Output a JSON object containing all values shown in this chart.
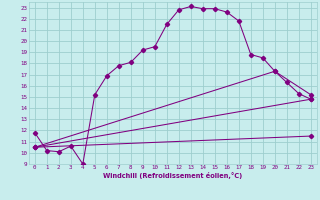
{
  "xlabel": "Windchill (Refroidissement éolien,°C)",
  "bg_color": "#c8eded",
  "line_color": "#800080",
  "grid_color": "#9ecece",
  "xlim": [
    -0.5,
    23.5
  ],
  "ylim": [
    9,
    23.5
  ],
  "xticks": [
    0,
    1,
    2,
    3,
    4,
    5,
    6,
    7,
    8,
    9,
    10,
    11,
    12,
    13,
    14,
    15,
    16,
    17,
    18,
    19,
    20,
    21,
    22,
    23
  ],
  "yticks": [
    9,
    10,
    11,
    12,
    13,
    14,
    15,
    16,
    17,
    18,
    19,
    20,
    21,
    22,
    23
  ],
  "curve1_x": [
    0,
    1,
    2,
    3,
    4,
    5,
    6,
    7,
    8,
    9,
    10,
    11,
    12,
    13,
    14,
    15,
    16,
    17,
    18,
    19,
    20,
    21,
    22,
    23
  ],
  "curve1_y": [
    11.8,
    10.2,
    10.1,
    10.6,
    9.0,
    15.2,
    16.9,
    17.8,
    18.1,
    19.2,
    19.5,
    21.5,
    22.8,
    23.1,
    22.9,
    22.9,
    22.6,
    21.8,
    18.8,
    18.5,
    17.3,
    16.3,
    15.3,
    14.8
  ],
  "line2_x": [
    0,
    23
  ],
  "line2_y": [
    10.5,
    14.8
  ],
  "line3_x": [
    0,
    20,
    23
  ],
  "line3_y": [
    10.5,
    17.3,
    15.2
  ],
  "line4_x": [
    0,
    23
  ],
  "line4_y": [
    10.5,
    11.5
  ],
  "marker": "D",
  "marker_size": 2.2,
  "linewidth": 0.75
}
